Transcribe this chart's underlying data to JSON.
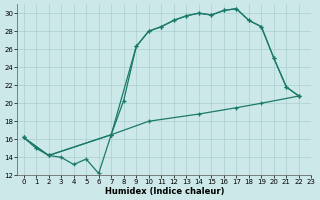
{
  "bg_color": "#cde8e8",
  "line_color": "#1a7a6a",
  "grid_color": "#aacfcf",
  "xlabel": "Humidex (Indice chaleur)",
  "xlim": [
    -0.5,
    23
  ],
  "ylim": [
    12,
    31
  ],
  "xticks": [
    0,
    1,
    2,
    3,
    4,
    5,
    6,
    7,
    8,
    9,
    10,
    11,
    12,
    13,
    14,
    15,
    16,
    17,
    18,
    19,
    20,
    21,
    22,
    23
  ],
  "yticks": [
    12,
    14,
    16,
    18,
    20,
    22,
    24,
    26,
    28,
    30
  ],
  "line1_x": [
    0,
    1,
    2,
    3,
    4,
    5,
    6,
    7,
    8,
    9,
    10,
    11,
    12,
    13,
    14,
    15,
    16,
    17,
    18,
    19,
    20,
    21,
    22
  ],
  "line1_y": [
    16.2,
    15.0,
    14.2,
    14.0,
    13.2,
    13.8,
    12.2,
    16.5,
    20.3,
    26.3,
    28.0,
    28.5,
    29.2,
    29.7,
    30.0,
    29.8,
    30.3,
    30.5,
    29.2,
    28.5,
    25.0,
    21.8,
    20.8
  ],
  "line2_x": [
    0,
    2,
    7,
    9,
    10,
    11,
    12,
    13,
    14,
    15,
    16,
    17,
    18,
    19,
    20,
    21,
    22
  ],
  "line2_y": [
    16.2,
    14.2,
    16.5,
    26.3,
    28.0,
    28.5,
    29.2,
    29.7,
    30.0,
    29.8,
    30.3,
    30.5,
    29.2,
    28.5,
    25.0,
    21.8,
    20.8
  ],
  "line3_x": [
    0,
    2,
    7,
    10,
    14,
    17,
    19,
    22
  ],
  "line3_y": [
    16.2,
    14.2,
    16.5,
    18.0,
    18.8,
    19.5,
    20.0,
    20.8
  ]
}
